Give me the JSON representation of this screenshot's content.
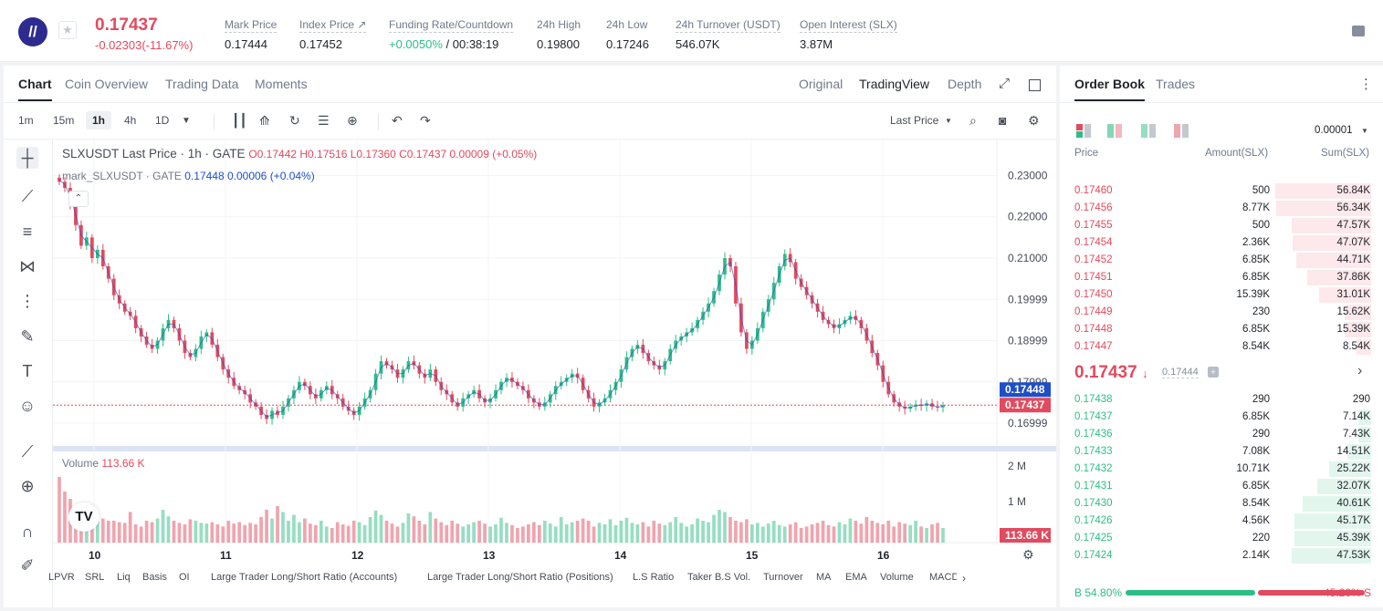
{
  "ticker": {
    "last_price": "0.17437",
    "change": "-0.02303(-11.67%)",
    "stats": [
      {
        "label": "Mark Price",
        "value": "0.17444"
      },
      {
        "label": "Index Price ↗",
        "value": "0.17452"
      },
      {
        "label": "Funding Rate/Countdown",
        "value_green": "+0.0050%",
        "value": " / 00:38:19"
      },
      {
        "label": "24h High",
        "value": "0.19800"
      },
      {
        "label": "24h Low",
        "value": "0.17246"
      },
      {
        "label": "24h Turnover (USDT)",
        "value": "546.07K"
      },
      {
        "label": "Open Interest (SLX)",
        "value": "3.87M"
      }
    ]
  },
  "chart_tabs": [
    "Chart",
    "Coin Overview",
    "Trading Data",
    "Moments"
  ],
  "view_tabs": [
    "Original",
    "TradingView",
    "Depth"
  ],
  "timeframes": [
    "1m",
    "15m",
    "1h",
    "4h",
    "1D"
  ],
  "price_type": "Last Price",
  "legend": {
    "line1_prefix": "SLXUSDT Last Price · 1h · GATE",
    "ohlc": "O0.17442  H0.17516  L0.17360  C0.17437  0.00009 (+0.05%)",
    "line2_prefix": "mark_SLXUSDT · GATE",
    "mark_vals": "0.17448  0.00006  (+0.04%)",
    "volume_label": "Volume",
    "volume_value": "113.66 K"
  },
  "bottom_indicators": [
    "LPVR",
    "SRL",
    "Liq",
    "Basis",
    "OI",
    "Large Trader Long/Short Ratio (Accounts)",
    "Large Trader Long/Short Ratio (Positions)",
    "L.S Ratio",
    "Taker B.S Vol.",
    "Turnover",
    "MA",
    "EMA",
    "Volume",
    "MACD"
  ],
  "chart_data": {
    "type": "candlestick",
    "price_axis_ticks": [
      "0.23000",
      "0.22000",
      "0.21000",
      "0.19999",
      "0.18999",
      "0.17999",
      "0.16999"
    ],
    "price_ylim": [
      0.1658,
      0.2332
    ],
    "volume_axis_ticks": [
      "2 M",
      "1 M"
    ],
    "x_tick_labels": [
      "10",
      "11",
      "12",
      "13",
      "14",
      "15",
      "16"
    ],
    "mark_price_label": "0.17448",
    "last_price_label": "0.17437",
    "volume_last_label": "113.66 K",
    "close_series": [
      0.2285,
      0.227,
      0.223,
      0.218,
      0.213,
      0.215,
      0.21,
      0.212,
      0.208,
      0.205,
      0.201,
      0.199,
      0.197,
      0.196,
      0.193,
      0.191,
      0.189,
      0.188,
      0.19,
      0.193,
      0.195,
      0.193,
      0.19,
      0.187,
      0.186,
      0.188,
      0.191,
      0.192,
      0.189,
      0.186,
      0.183,
      0.181,
      0.179,
      0.178,
      0.177,
      0.175,
      0.174,
      0.172,
      0.171,
      0.173,
      0.172,
      0.174,
      0.176,
      0.178,
      0.18,
      0.179,
      0.177,
      0.176,
      0.178,
      0.179,
      0.177,
      0.176,
      0.174,
      0.173,
      0.172,
      0.174,
      0.176,
      0.178,
      0.182,
      0.185,
      0.184,
      0.183,
      0.181,
      0.183,
      0.185,
      0.184,
      0.182,
      0.181,
      0.183,
      0.18,
      0.178,
      0.177,
      0.175,
      0.174,
      0.176,
      0.177,
      0.178,
      0.176,
      0.175,
      0.176,
      0.178,
      0.18,
      0.181,
      0.18,
      0.179,
      0.178,
      0.176,
      0.175,
      0.174,
      0.175,
      0.177,
      0.179,
      0.18,
      0.181,
      0.182,
      0.181,
      0.178,
      0.176,
      0.174,
      0.175,
      0.176,
      0.178,
      0.18,
      0.183,
      0.186,
      0.188,
      0.189,
      0.187,
      0.185,
      0.184,
      0.183,
      0.185,
      0.188,
      0.19,
      0.191,
      0.192,
      0.193,
      0.195,
      0.197,
      0.199,
      0.202,
      0.206,
      0.21,
      0.208,
      0.199,
      0.192,
      0.188,
      0.19,
      0.193,
      0.197,
      0.2,
      0.204,
      0.208,
      0.211,
      0.209,
      0.205,
      0.203,
      0.201,
      0.199,
      0.197,
      0.195,
      0.194,
      0.193,
      0.194,
      0.195,
      0.196,
      0.195,
      0.193,
      0.19,
      0.187,
      0.184,
      0.18,
      0.177,
      0.175,
      0.174,
      0.1735,
      0.174,
      0.1745,
      0.1742,
      0.1748,
      0.174,
      0.1738,
      0.17437
    ],
    "volume_series": [
      0.9,
      0.7,
      0.6,
      0.5,
      0.4,
      0.45,
      0.35,
      0.38,
      0.33,
      0.3,
      0.3,
      0.28,
      0.27,
      0.42,
      0.25,
      0.22,
      0.3,
      0.28,
      0.33,
      0.45,
      0.36,
      0.3,
      0.27,
      0.25,
      0.32,
      0.3,
      0.27,
      0.26,
      0.28,
      0.25,
      0.22,
      0.3,
      0.26,
      0.28,
      0.24,
      0.27,
      0.25,
      0.35,
      0.45,
      0.33,
      0.5,
      0.42,
      0.3,
      0.38,
      0.28,
      0.33,
      0.26,
      0.24,
      0.3,
      0.22,
      0.2,
      0.28,
      0.25,
      0.23,
      0.3,
      0.28,
      0.24,
      0.35,
      0.44,
      0.38,
      0.3,
      0.26,
      0.22,
      0.27,
      0.4,
      0.36,
      0.3,
      0.25,
      0.42,
      0.33,
      0.28,
      0.24,
      0.3,
      0.26,
      0.22,
      0.25,
      0.28,
      0.3,
      0.26,
      0.22,
      0.25,
      0.34,
      0.27,
      0.24,
      0.2,
      0.22,
      0.25,
      0.28,
      0.24,
      0.3,
      0.26,
      0.22,
      0.35,
      0.25,
      0.28,
      0.3,
      0.33,
      0.3,
      0.22,
      0.27,
      0.25,
      0.32,
      0.24,
      0.3,
      0.34,
      0.27,
      0.25,
      0.28,
      0.22,
      0.3,
      0.26,
      0.24,
      0.28,
      0.35,
      0.27,
      0.22,
      0.25,
      0.33,
      0.3,
      0.28,
      0.38,
      0.45,
      0.42,
      0.35,
      0.3,
      0.28,
      0.32,
      0.25,
      0.27,
      0.22,
      0.26,
      0.3,
      0.24,
      0.22,
      0.25,
      0.28,
      0.2,
      0.22,
      0.25,
      0.27,
      0.3,
      0.24,
      0.22,
      0.28,
      0.25,
      0.33,
      0.3,
      0.26,
      0.35,
      0.3,
      0.27,
      0.25,
      0.3,
      0.22,
      0.28,
      0.26,
      0.24,
      0.3,
      0.22,
      0.2,
      0.25,
      0.27
    ]
  },
  "orderbook": {
    "tabs": [
      "Order Book",
      "Trades"
    ],
    "precision": "0.00001",
    "headers": [
      "Price",
      "Amount(SLX)",
      "Sum(SLX)"
    ],
    "asks": [
      {
        "p": "0.17460",
        "a": "500",
        "s": "56.84K",
        "depth": 0.84
      },
      {
        "p": "0.17456",
        "a": "8.77K",
        "s": "56.34K",
        "depth": 0.83
      },
      {
        "p": "0.17455",
        "a": "500",
        "s": "47.57K",
        "depth": 0.7
      },
      {
        "p": "0.17454",
        "a": "2.36K",
        "s": "47.07K",
        "depth": 0.69
      },
      {
        "p": "0.17452",
        "a": "6.85K",
        "s": "44.71K",
        "depth": 0.66
      },
      {
        "p": "0.17451",
        "a": "6.85K",
        "s": "37.86K",
        "depth": 0.56
      },
      {
        "p": "0.17450",
        "a": "15.39K",
        "s": "31.01K",
        "depth": 0.46
      },
      {
        "p": "0.17449",
        "a": "230",
        "s": "15.62K",
        "depth": 0.23
      },
      {
        "p": "0.17448",
        "a": "6.85K",
        "s": "15.39K",
        "depth": 0.23
      },
      {
        "p": "0.17447",
        "a": "8.54K",
        "s": "8.54K",
        "depth": 0.13
      }
    ],
    "mid_price": "0.17437",
    "mid_mark": "0.17444",
    "bids": [
      {
        "p": "0.17438",
        "a": "290",
        "s": "290",
        "depth": 0.0
      },
      {
        "p": "0.17437",
        "a": "6.85K",
        "s": "7.14K",
        "depth": 0.11
      },
      {
        "p": "0.17436",
        "a": "290",
        "s": "7.43K",
        "depth": 0.11
      },
      {
        "p": "0.17433",
        "a": "7.08K",
        "s": "14.51K",
        "depth": 0.21
      },
      {
        "p": "0.17432",
        "a": "10.71K",
        "s": "25.22K",
        "depth": 0.37
      },
      {
        "p": "0.17431",
        "a": "6.85K",
        "s": "32.07K",
        "depth": 0.47
      },
      {
        "p": "0.17430",
        "a": "8.54K",
        "s": "40.61K",
        "depth": 0.6
      },
      {
        "p": "0.17426",
        "a": "4.56K",
        "s": "45.17K",
        "depth": 0.67
      },
      {
        "p": "0.17425",
        "a": "220",
        "s": "45.39K",
        "depth": 0.67
      },
      {
        "p": "0.17424",
        "a": "2.14K",
        "s": "47.53K",
        "depth": 0.7
      }
    ],
    "buy_pct": "B 54.80%",
    "sell_pct": "45.20% S",
    "buy_ratio": 0.548
  },
  "colors": {
    "up": "#2ebd85",
    "down": "#e24a5e",
    "mark": "#1f4fc6"
  }
}
